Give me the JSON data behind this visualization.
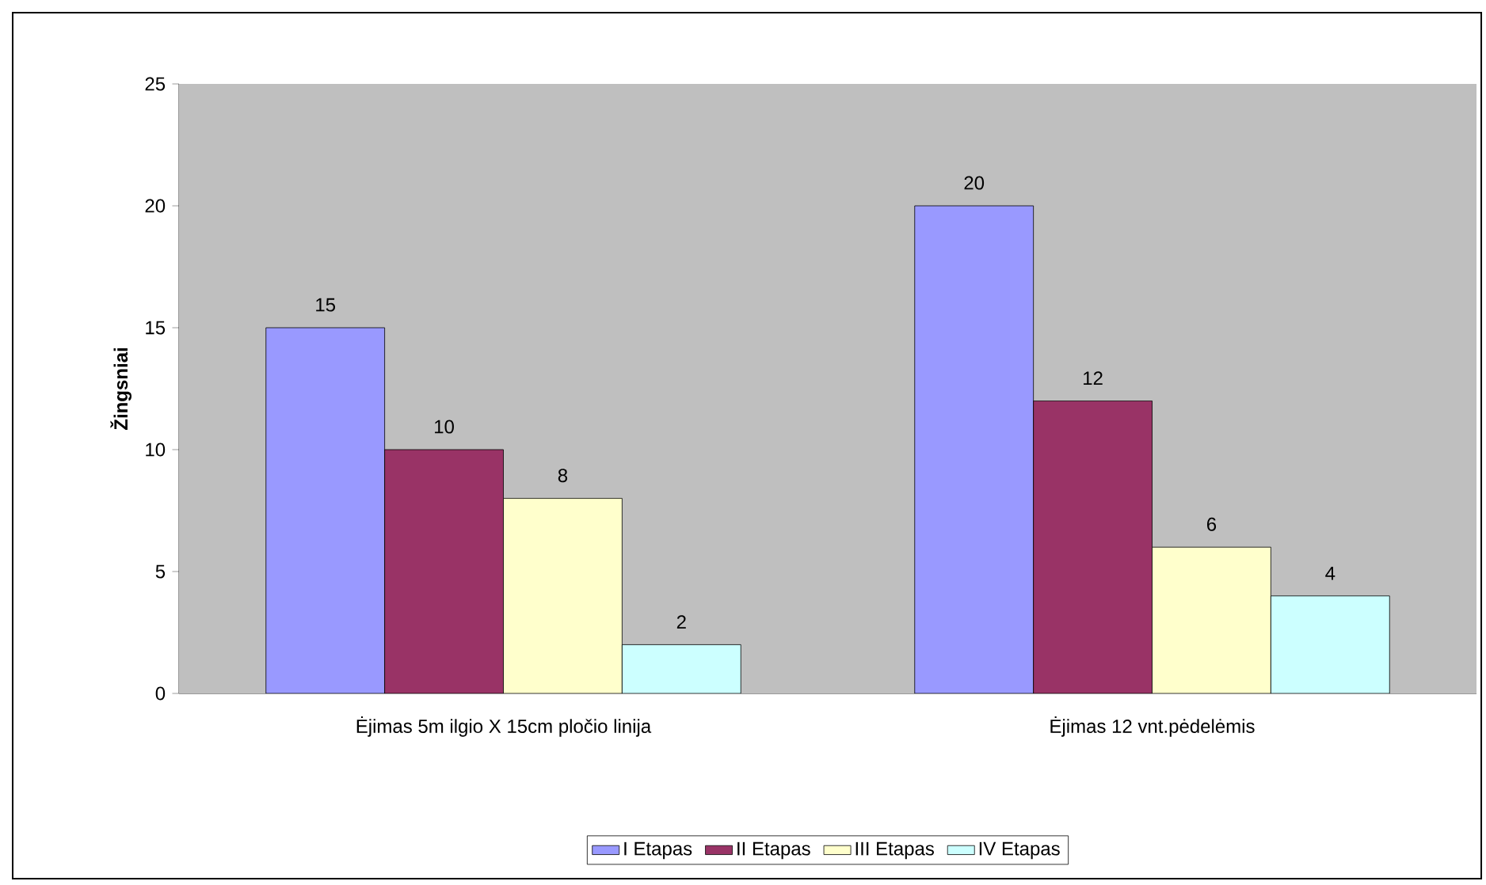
{
  "chart_data": {
    "type": "bar",
    "ylabel": "Žingsniai",
    "categories": [
      "Ėjimas 5m ilgio X 15cm pločio linija",
      "Ėjimas 12 vnt.pėdelėmis"
    ],
    "series": [
      {
        "name": "I Etapas",
        "color": "#9999ff",
        "values": [
          15,
          20
        ]
      },
      {
        "name": "II Etapas",
        "color": "#993366",
        "values": [
          10,
          12
        ]
      },
      {
        "name": "III Etapas",
        "color": "#ffffcc",
        "values": [
          8,
          6
        ]
      },
      {
        "name": "IV Etapas",
        "color": "#ccffff",
        "values": [
          2,
          4
        ]
      }
    ],
    "ylim": [
      0,
      25
    ],
    "yticks": [
      0,
      5,
      10,
      15,
      20,
      25
    ],
    "data_labels": true,
    "legend": "bottom"
  }
}
